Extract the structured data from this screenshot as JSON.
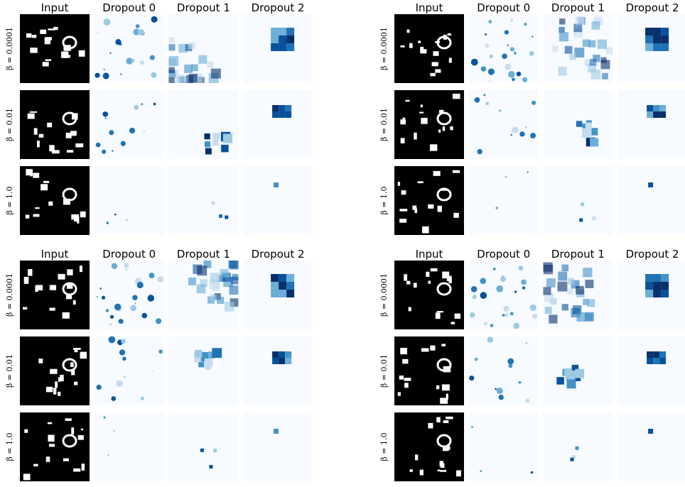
{
  "panels": [
    {
      "headers": [
        "Input",
        "Dropout 0",
        "Dropout 1",
        "Dropout 2"
      ],
      "rows": [
        "β = 0.0001",
        "β = 0.01",
        "β = 1.0"
      ]
    },
    {
      "headers": [
        "Input",
        "Dropout 0",
        "Dropout 1",
        "Dropout 2"
      ],
      "rows": [
        "β = 0.0001",
        "β = 0.01",
        "β = 1.0"
      ]
    },
    {
      "headers": [
        "Input",
        "Dropout 0",
        "Dropout 1",
        "Dropout 2"
      ],
      "rows": [
        "β = 0.0001",
        "β = 0.01",
        "β = 1.0"
      ]
    },
    {
      "headers": [
        "Input",
        "Dropout 0",
        "Dropout 1",
        "Dropout 2"
      ],
      "rows": [
        "β = 0.0001",
        "β = 0.01",
        "β = 1.0"
      ]
    }
  ]
}
